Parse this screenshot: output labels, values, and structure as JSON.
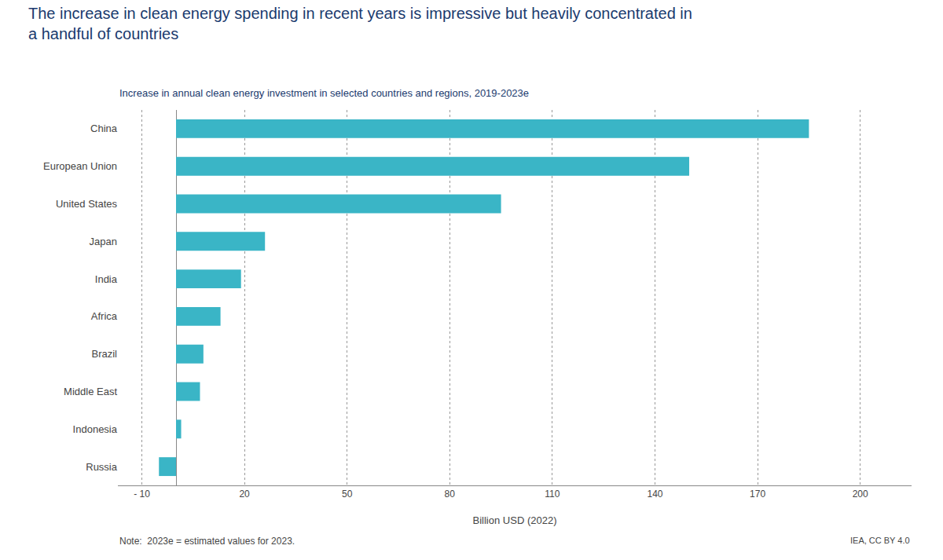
{
  "chart_data": {
    "type": "bar",
    "orientation": "horizontal",
    "title": "The increase in clean energy spending in recent years is impressive but heavily concentrated in\na handful of countries",
    "subtitle": "Increase in annual clean energy investment in selected countries and regions, 2019-2023e",
    "xlabel": "Billion USD (2022)",
    "annotations": [
      "Note:  2023e = estimated values for 2023.",
      "IEA, CC BY 4.0"
    ],
    "categories": [
      "China",
      "European Union",
      "United States",
      "Japan",
      "India",
      "Africa",
      "Brazil",
      "Middle East",
      "Indonesia",
      "Russia"
    ],
    "values": [
      185,
      150,
      95,
      26,
      19,
      13,
      8,
      7,
      1.5,
      -5
    ],
    "color": "#3ab5c6",
    "xlim": [
      -17,
      215
    ],
    "xticks": [
      {
        "value": -10,
        "label": "- 10"
      },
      20,
      50,
      80,
      110,
      140,
      170,
      200
    ],
    "grid": true
  }
}
